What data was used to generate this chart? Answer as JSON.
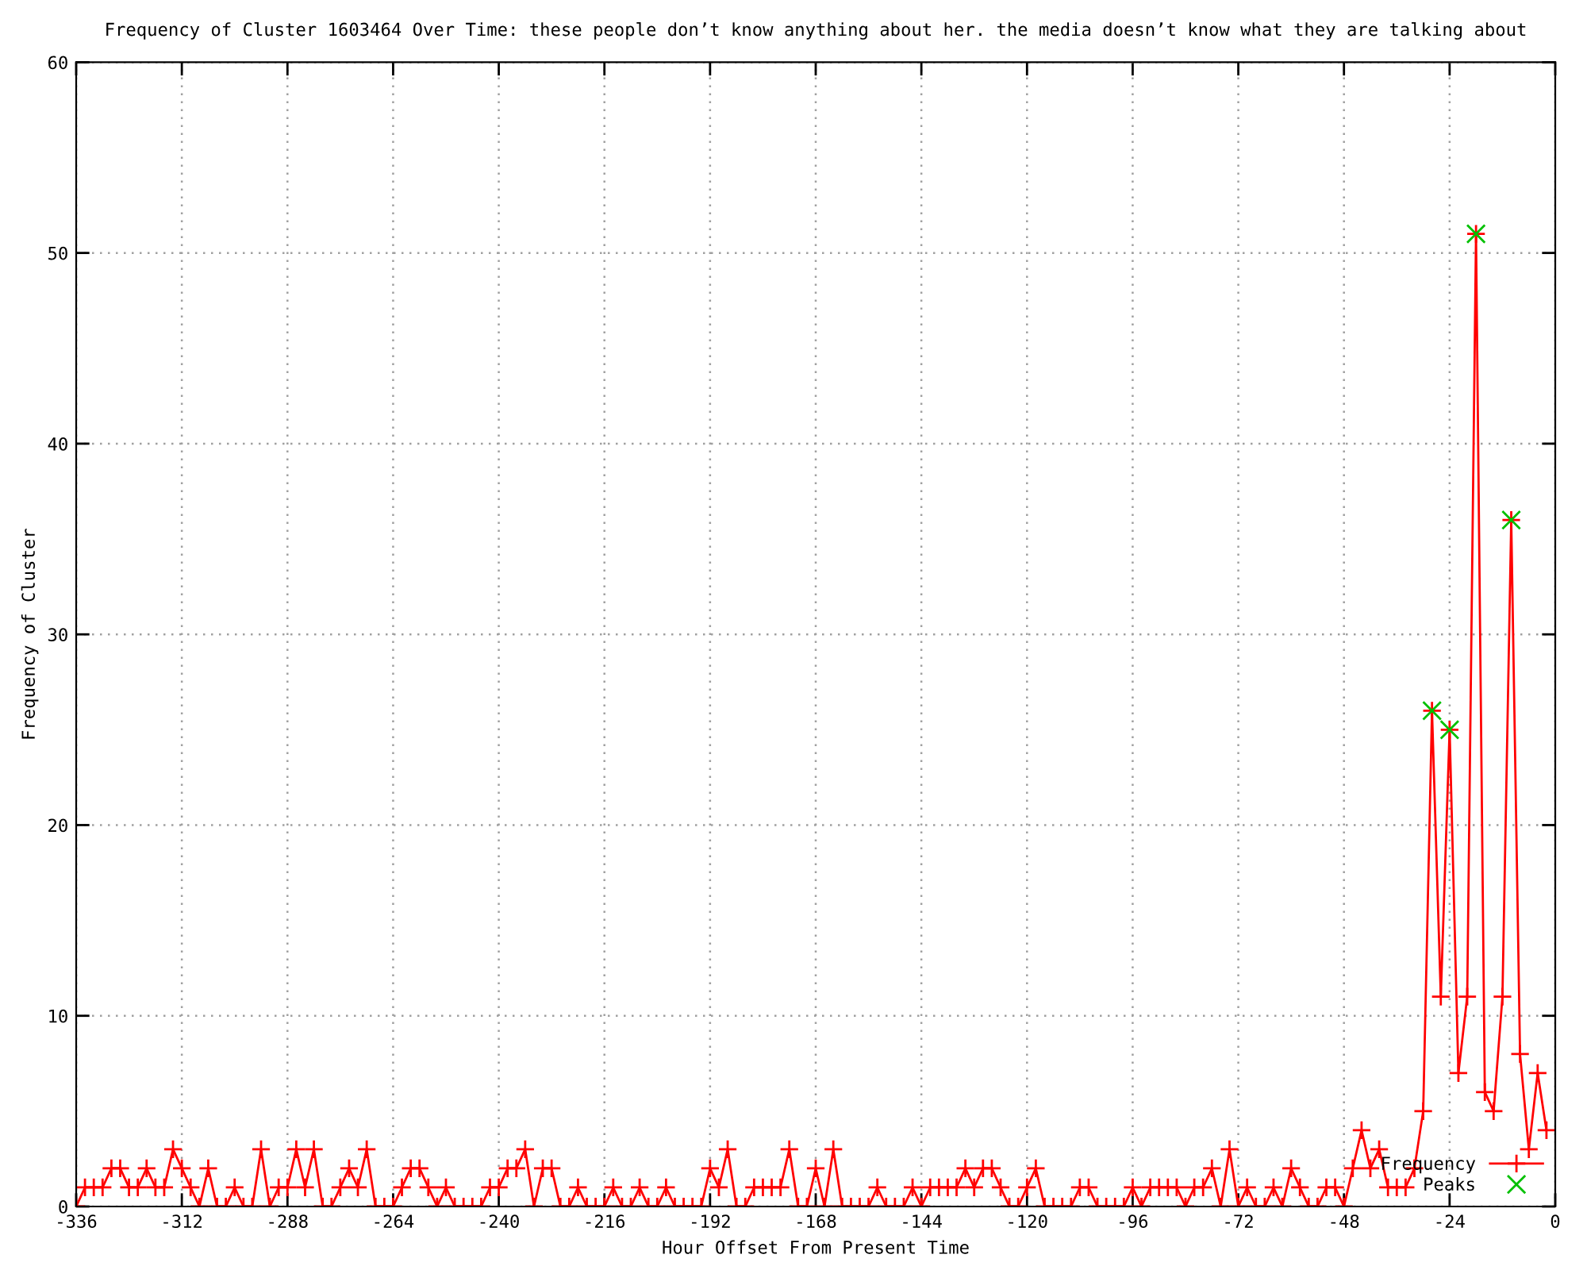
{
  "chart_data": {
    "type": "line",
    "title": "Frequency of Cluster 1603464 Over Time: these people don’t know anything about her. the media doesn’t know what they are talking about",
    "xlabel": "Hour Offset From Present Time",
    "ylabel": "Frequency of Cluster",
    "xlim": [
      -336,
      0
    ],
    "xticks": [
      -336,
      -312,
      -288,
      -264,
      -240,
      -216,
      -192,
      -168,
      -144,
      -120,
      -96,
      -72,
      -48,
      -24,
      0
    ],
    "ylim": [
      0,
      60
    ],
    "yticks": [
      0,
      10,
      20,
      30,
      40,
      50,
      60
    ],
    "grid": true,
    "legend": "bottom right",
    "series": [
      {
        "name": "Frequency",
        "color": "#ff0000",
        "marker": "cross",
        "x": [
          -336,
          -334,
          -332,
          -330,
          -328,
          -326,
          -324,
          -322,
          -320,
          -318,
          -316,
          -314,
          -312,
          -310,
          -308,
          -306,
          -304,
          -302,
          -300,
          -298,
          -296,
          -294,
          -292,
          -290,
          -288,
          -286,
          -284,
          -282,
          -280,
          -278,
          -276,
          -274,
          -272,
          -270,
          -268,
          -266,
          -264,
          -262,
          -260,
          -258,
          -256,
          -254,
          -252,
          -250,
          -248,
          -246,
          -244,
          -242,
          -240,
          -238,
          -236,
          -234,
          -232,
          -230,
          -228,
          -226,
          -224,
          -222,
          -220,
          -218,
          -216,
          -214,
          -212,
          -210,
          -208,
          -206,
          -204,
          -202,
          -200,
          -198,
          -196,
          -194,
          -192,
          -190,
          -188,
          -186,
          -184,
          -182,
          -180,
          -178,
          -176,
          -174,
          -172,
          -170,
          -168,
          -166,
          -164,
          -162,
          -160,
          -158,
          -156,
          -154,
          -152,
          -150,
          -148,
          -146,
          -144,
          -142,
          -140,
          -138,
          -136,
          -134,
          -132,
          -130,
          -128,
          -126,
          -124,
          -122,
          -120,
          -118,
          -116,
          -114,
          -112,
          -110,
          -108,
          -106,
          -104,
          -102,
          -100,
          -98,
          -96,
          -94,
          -92,
          -90,
          -88,
          -86,
          -84,
          -82,
          -80,
          -78,
          -76,
          -74,
          -72,
          -70,
          -68,
          -66,
          -64,
          -62,
          -60,
          -58,
          -56,
          -54,
          -52,
          -50,
          -48,
          -46,
          -44,
          -42,
          -40,
          -38,
          -36,
          -34,
          -32,
          -30,
          -28,
          -26,
          -24,
          -22,
          -20,
          -18,
          -16,
          -14,
          -12,
          -10,
          -8,
          -6,
          -4,
          -2
        ],
        "values": [
          0,
          1,
          1,
          1,
          2,
          2,
          1,
          1,
          2,
          1,
          1,
          3,
          2,
          1,
          0,
          2,
          0,
          0,
          1,
          0,
          0,
          3,
          0,
          1,
          1,
          3,
          1,
          3,
          0,
          0,
          1,
          2,
          1,
          3,
          0,
          0,
          0,
          1,
          2,
          2,
          1,
          0,
          1,
          0,
          0,
          0,
          0,
          1,
          1,
          2,
          2,
          3,
          0,
          2,
          2,
          0,
          0,
          1,
          0,
          0,
          0,
          1,
          0,
          0,
          1,
          0,
          0,
          1,
          0,
          0,
          0,
          0,
          2,
          1,
          3,
          0,
          0,
          1,
          1,
          1,
          1,
          3,
          0,
          0,
          2,
          0,
          3,
          0,
          0,
          0,
          0,
          1,
          0,
          0,
          0,
          1,
          0,
          1,
          1,
          1,
          1,
          2,
          1,
          2,
          2,
          1,
          0,
          0,
          1,
          2,
          0,
          0,
          0,
          0,
          1,
          1,
          0,
          0,
          0,
          0,
          1,
          0,
          1,
          1,
          1,
          1,
          0,
          1,
          1,
          2,
          0,
          3,
          0,
          1,
          0,
          0,
          1,
          0,
          2,
          1,
          0,
          0,
          1,
          1,
          0,
          2,
          4,
          2,
          3,
          1,
          1,
          1,
          2,
          5,
          26,
          11,
          25,
          7,
          11,
          51,
          6,
          5,
          11,
          36,
          8,
          3,
          7,
          4
        ]
      },
      {
        "name": "Peaks",
        "type": "scatter",
        "color": "#00c000",
        "marker": "cross",
        "x": [
          -28,
          -24,
          -18,
          -10
        ],
        "values": [
          26,
          25,
          51,
          36
        ]
      }
    ]
  }
}
